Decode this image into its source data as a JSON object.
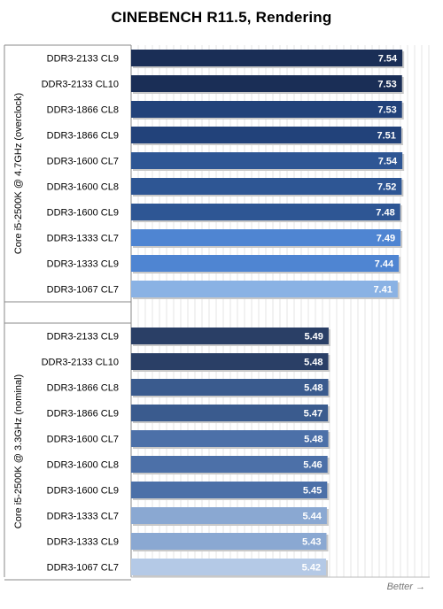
{
  "chart_data": {
    "type": "bar",
    "orientation": "horizontal",
    "title": "CINEBENCH R11.5, Rendering",
    "footer": "Better",
    "groups": [
      {
        "name": "Core i5-2500K @ 4.7GHz (overclock)",
        "categories": [
          "DDR3-2133 CL9",
          "DDR3-2133 CL10",
          "DDR3-1866 CL8",
          "DDR3-1866 CL9",
          "DDR3-1600 CL7",
          "DDR3-1600 CL8",
          "DDR3-1600 CL9",
          "DDR3-1333 CL7",
          "DDR3-1333 CL9",
          "DDR3-1067 CL7"
        ],
        "values": [
          7.54,
          7.53,
          7.53,
          7.51,
          7.54,
          7.52,
          7.48,
          7.49,
          7.44,
          7.41
        ],
        "colors": [
          "#1a2e56",
          "#1a2e56",
          "#22427a",
          "#22427a",
          "#2e5694",
          "#2e5694",
          "#2e5694",
          "#4f85d2",
          "#4f85d2",
          "#8ab2e4"
        ]
      },
      {
        "name": "Core i5-2500K @ 3.3GHz (nominal)",
        "categories": [
          "DDR3-2133 CL9",
          "DDR3-2133 CL10",
          "DDR3-1866 CL8",
          "DDR3-1866 CL9",
          "DDR3-1600 CL7",
          "DDR3-1600 CL8",
          "DDR3-1600 CL9",
          "DDR3-1333 CL7",
          "DDR3-1333 CL9",
          "DDR3-1067 CL7"
        ],
        "values": [
          5.49,
          5.48,
          5.48,
          5.47,
          5.48,
          5.46,
          5.45,
          5.44,
          5.43,
          5.42
        ],
        "colors": [
          "#2a3f66",
          "#2a3f66",
          "#3a5b8e",
          "#3a5b8e",
          "#4c70a8",
          "#4c70a8",
          "#4c70a8",
          "#8aa8d2",
          "#8aa8d2",
          "#b4c9e6"
        ]
      }
    ],
    "xlim": [
      0,
      8.3
    ],
    "grid": true,
    "legend": "none"
  }
}
